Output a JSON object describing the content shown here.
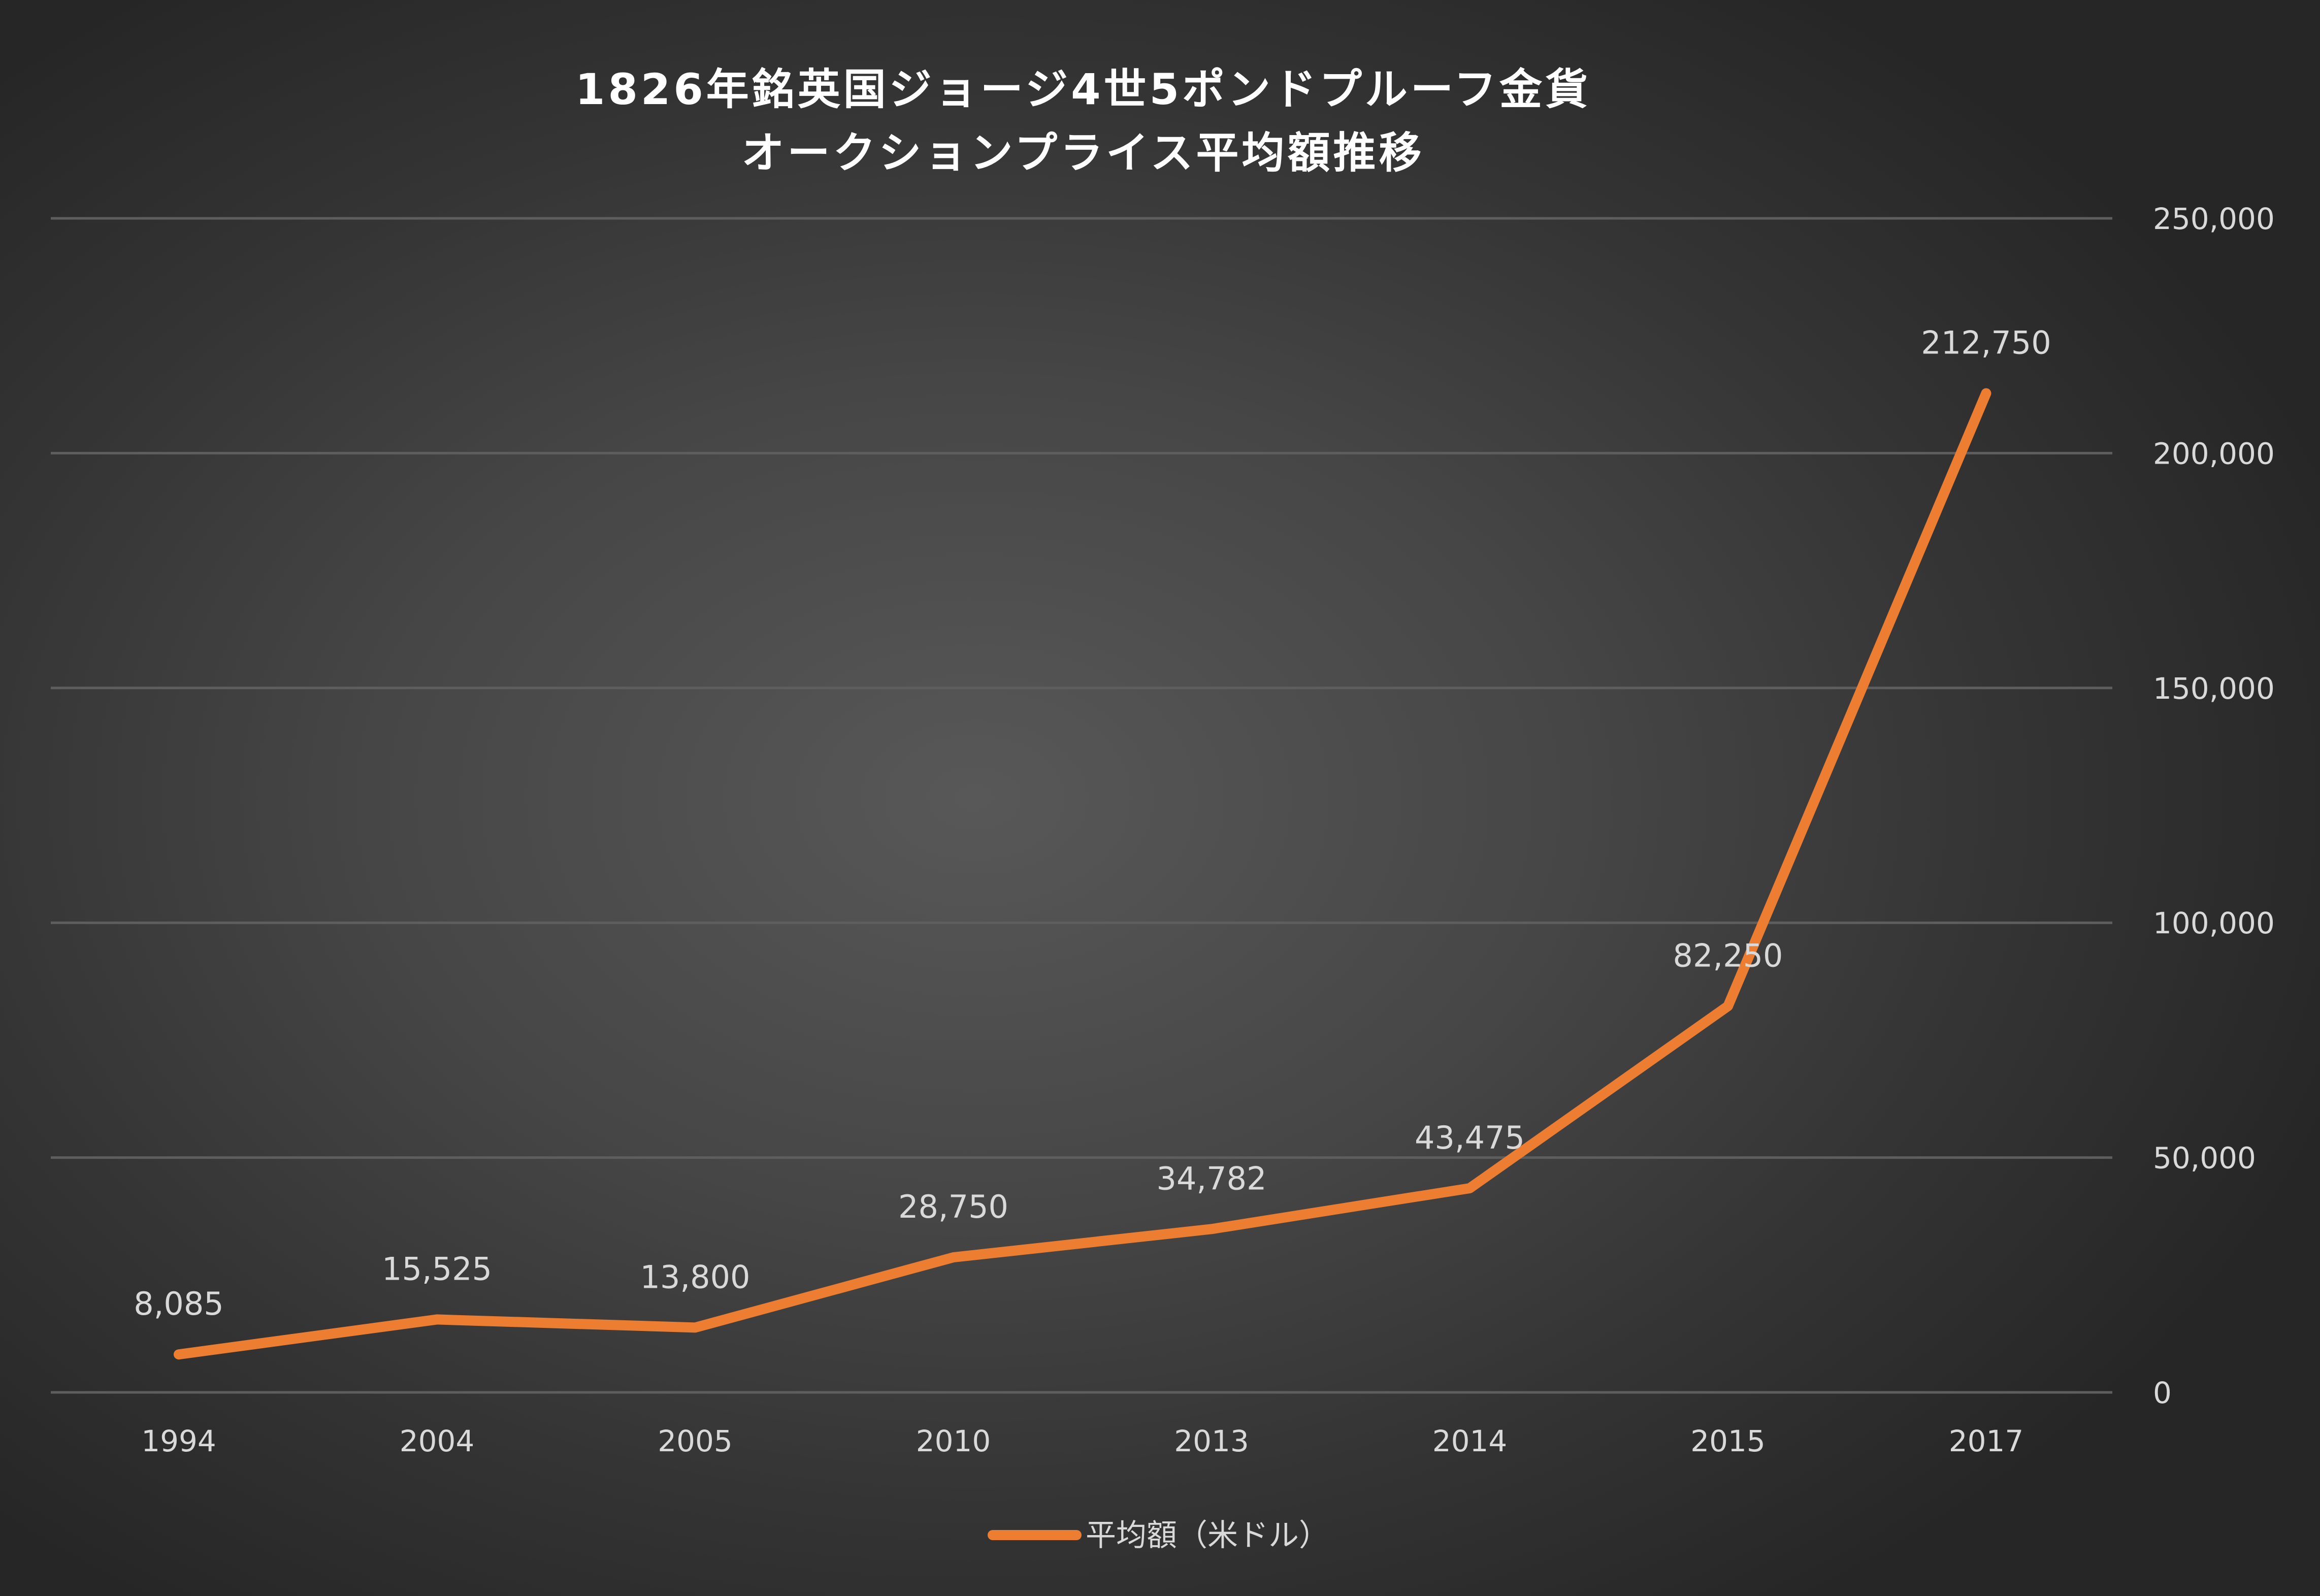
{
  "chart_data": {
    "type": "line",
    "title_lines": [
      "1826年銘英国ジョージ4世5ポンドプルーフ金貨",
      "オークションプライス平均額推移"
    ],
    "categories": [
      "1994",
      "2004",
      "2005",
      "2010",
      "2013",
      "2014",
      "2015",
      "2017"
    ],
    "series": [
      {
        "name": "平均額（米ドル）",
        "values": [
          8085,
          15525,
          13800,
          28750,
          34782,
          43475,
          82250,
          212750
        ],
        "labels": [
          "8,085",
          "15,525",
          "13,800",
          "28,750",
          "34,782",
          "43,475",
          "82,250",
          "212,750"
        ],
        "color": "#ed7d31"
      }
    ],
    "y_axis": {
      "position": "right",
      "min": 0,
      "max": 250000,
      "ticks": [
        0,
        50000,
        100000,
        150000,
        200000,
        250000
      ],
      "tick_labels": [
        "0",
        "50,000",
        "100,000",
        "150,000",
        "200,000",
        "250,000"
      ]
    },
    "grid": true,
    "legend": {
      "position": "bottom"
    }
  },
  "colors": {
    "background": "#404040",
    "gridline": "#5e5e5e",
    "text": "#d9d9d9",
    "series": "#ed7d31"
  }
}
